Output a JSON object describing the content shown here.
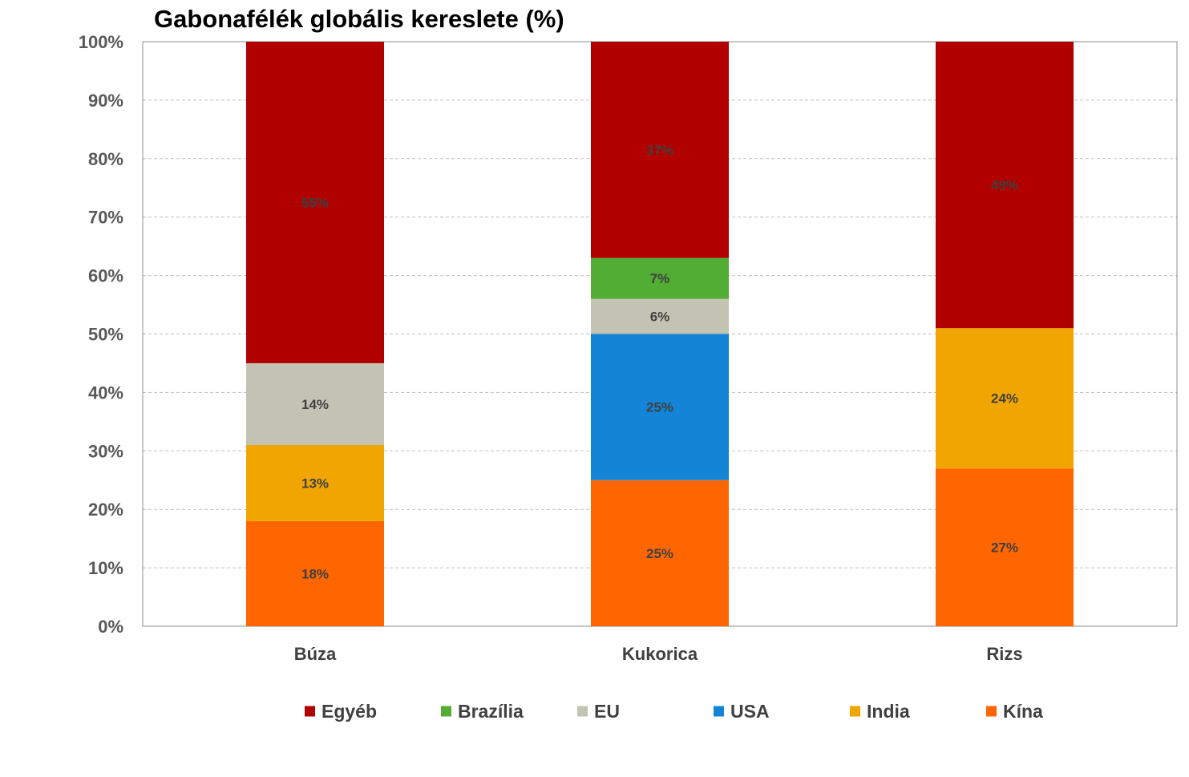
{
  "chart_data": {
    "type": "bar",
    "stacked": true,
    "title": "Gabonafélék globális kereslete (%)",
    "xlabel": "",
    "ylabel": "",
    "ylim": [
      0,
      100
    ],
    "y_ticks": [
      "0%",
      "10%",
      "20%",
      "30%",
      "40%",
      "50%",
      "60%",
      "70%",
      "80%",
      "90%",
      "100%"
    ],
    "grid": true,
    "legend_position": "bottom",
    "categories": [
      "Búza",
      "Kukorica",
      "Rizs"
    ],
    "series": [
      {
        "name": "Kína",
        "color": "#FF6600",
        "values": [
          18,
          25,
          27
        ],
        "labels": [
          "18%",
          "25%",
          "27%"
        ]
      },
      {
        "name": "India",
        "color": "#F0A500",
        "values": [
          13,
          0,
          24
        ],
        "labels": [
          "13%",
          "",
          "24%"
        ]
      },
      {
        "name": "USA",
        "color": "#1384D6",
        "values": [
          0,
          25,
          0
        ],
        "labels": [
          "",
          "25%",
          ""
        ]
      },
      {
        "name": "EU",
        "color": "#C3C3B3",
        "values": [
          14,
          6,
          0
        ],
        "labels": [
          "14%",
          "6%",
          ""
        ]
      },
      {
        "name": "Brazília",
        "color": "#52AD34",
        "values": [
          0,
          7,
          0
        ],
        "labels": [
          "",
          "7%",
          ""
        ]
      },
      {
        "name": "Egyéb",
        "color": "#B00000",
        "values": [
          55,
          37,
          49
        ],
        "labels": [
          "55%",
          "37%",
          "49%"
        ]
      }
    ],
    "legend_order": [
      "Egyéb",
      "Brazília",
      "EU",
      "USA",
      "India",
      "Kína"
    ]
  }
}
